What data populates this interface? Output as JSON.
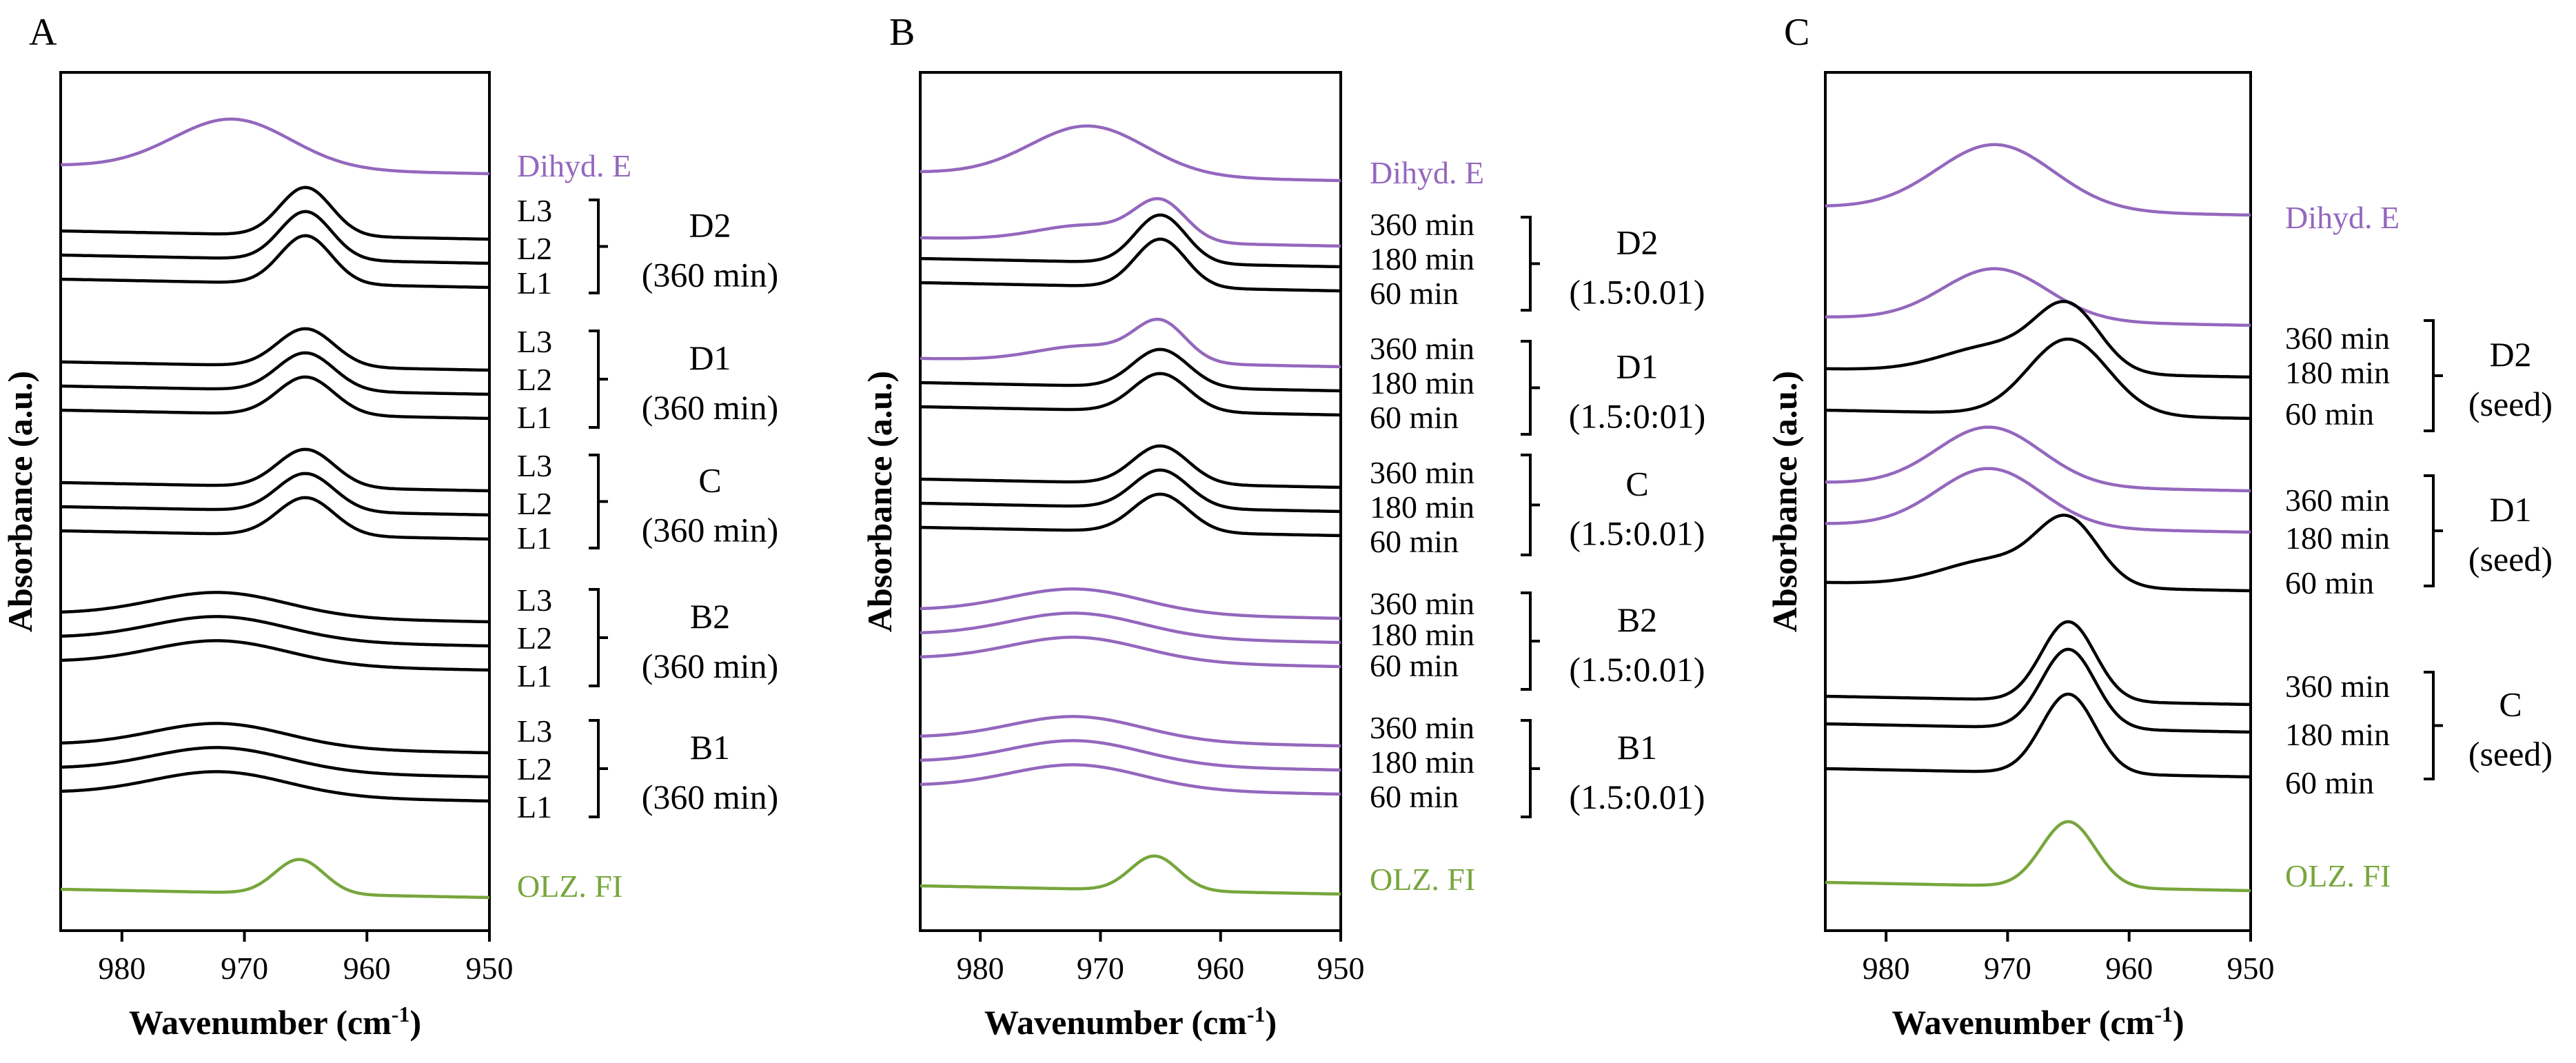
{
  "colors": {
    "black": "#000000",
    "purple": "#9467bd",
    "green": "#77a63c"
  },
  "chart_data": [
    {
      "type": "line",
      "panel_label": "A",
      "xlabel_main": "Wavenumber (cm",
      "xlabel_sup": "-1",
      "xlabel_end": ")",
      "ylabel": "Absorbance (a.u.)",
      "xlim": [
        985,
        950
      ],
      "xticks": [
        "980",
        "970",
        "960",
        "950"
      ],
      "xtick_values": [
        980,
        970,
        960,
        950
      ],
      "series": [
        {
          "name": "Dihyd. E",
          "color": "purple",
          "baseline": 2.4,
          "shape": "broad",
          "peak": 971,
          "amp": 0.72,
          "width": 4.8
        },
        {
          "name": "D2 L3",
          "color": "black",
          "baseline": 3.35,
          "shape": "narrow",
          "peak": 965,
          "amp": 0.7,
          "width": 2.1
        },
        {
          "name": "D2 L2",
          "color": "black",
          "baseline": 3.7,
          "shape": "narrow",
          "peak": 965,
          "amp": 0.7,
          "width": 2.1
        },
        {
          "name": "D2 L1",
          "color": "black",
          "baseline": 4.05,
          "shape": "narrow",
          "peak": 965,
          "amp": 0.7,
          "width": 2.1
        },
        {
          "name": "D1 L3",
          "color": "black",
          "baseline": 5.25,
          "shape": "narrow",
          "peak": 965,
          "amp": 0.55,
          "width": 2.3
        },
        {
          "name": "D1 L2",
          "color": "black",
          "baseline": 5.6,
          "shape": "narrow",
          "peak": 965,
          "amp": 0.55,
          "width": 2.3
        },
        {
          "name": "D1 L1",
          "color": "black",
          "baseline": 5.95,
          "shape": "narrow",
          "peak": 965,
          "amp": 0.55,
          "width": 2.3
        },
        {
          "name": "C L3",
          "color": "black",
          "baseline": 7.0,
          "shape": "narrow",
          "peak": 965,
          "amp": 0.55,
          "width": 2.3
        },
        {
          "name": "C L2",
          "color": "black",
          "baseline": 7.35,
          "shape": "narrow",
          "peak": 965,
          "amp": 0.55,
          "width": 2.3
        },
        {
          "name": "C L1",
          "color": "black",
          "baseline": 7.7,
          "shape": "narrow",
          "peak": 965,
          "amp": 0.55,
          "width": 2.3
        },
        {
          "name": "B2 L3",
          "color": "black",
          "baseline": 8.9,
          "shape": "broad",
          "peak": 972,
          "amp": 0.35,
          "width": 5.5
        },
        {
          "name": "B2 L2",
          "color": "black",
          "baseline": 9.25,
          "shape": "broad",
          "peak": 972,
          "amp": 0.35,
          "width": 5.5
        },
        {
          "name": "B2 L1",
          "color": "black",
          "baseline": 9.6,
          "shape": "broad",
          "peak": 972,
          "amp": 0.35,
          "width": 5.5
        },
        {
          "name": "B1 L3",
          "color": "black",
          "baseline": 10.8,
          "shape": "broad",
          "peak": 972,
          "amp": 0.35,
          "width": 5.5
        },
        {
          "name": "B1 L2",
          "color": "black",
          "baseline": 11.15,
          "shape": "broad",
          "peak": 972,
          "amp": 0.35,
          "width": 5.5
        },
        {
          "name": "B1 L1",
          "color": "black",
          "baseline": 11.5,
          "shape": "broad",
          "peak": 972,
          "amp": 0.35,
          "width": 5.5
        },
        {
          "name": "OLZ. FI",
          "color": "green",
          "baseline": 12.9,
          "shape": "narrow",
          "peak": 965.5,
          "amp": 0.5,
          "width": 2.0
        }
      ],
      "labels": [
        {
          "text": "Dihyd. E",
          "color": "purple",
          "level": 2.4
        },
        {
          "text": "L3",
          "color": "black",
          "level": 3.05
        },
        {
          "text": "L2",
          "color": "black",
          "level": 3.6
        },
        {
          "text": "L1",
          "color": "black",
          "level": 4.1
        },
        {
          "text": "L3",
          "color": "black",
          "level": 4.95
        },
        {
          "text": "L2",
          "color": "black",
          "level": 5.5
        },
        {
          "text": "L1",
          "color": "black",
          "level": 6.05
        },
        {
          "text": "L3",
          "color": "black",
          "level": 6.75
        },
        {
          "text": "L2",
          "color": "black",
          "level": 7.3
        },
        {
          "text": "L1",
          "color": "black",
          "level": 7.8
        },
        {
          "text": "L3",
          "color": "black",
          "level": 8.7
        },
        {
          "text": "L2",
          "color": "black",
          "level": 9.25
        },
        {
          "text": "L1",
          "color": "black",
          "level": 9.8
        },
        {
          "text": "L3",
          "color": "black",
          "level": 10.6
        },
        {
          "text": "L2",
          "color": "black",
          "level": 11.15
        },
        {
          "text": "L1",
          "color": "black",
          "level": 11.7
        },
        {
          "text": "OLZ. FI",
          "color": "green",
          "level": 12.85
        }
      ],
      "groups": [
        {
          "name": "D2",
          "sub": "(360 min)",
          "top": 2.9,
          "bottom": 4.25
        },
        {
          "name": "D1",
          "sub": "(360 min)",
          "top": 4.8,
          "bottom": 6.2
        },
        {
          "name": "C",
          "sub": "(360 min)",
          "top": 6.6,
          "bottom": 7.95
        },
        {
          "name": "B2",
          "sub": "(360 min)",
          "top": 8.55,
          "bottom": 9.95
        },
        {
          "name": "B1",
          "sub": "(360 min)",
          "top": 10.45,
          "bottom": 11.85
        }
      ]
    },
    {
      "type": "line",
      "panel_label": "B",
      "xlabel_main": "Wavenumber (cm",
      "xlabel_sup": "-1",
      "xlabel_end": ")",
      "ylabel": "Absorbance (a.u.)",
      "xlim": [
        985,
        950
      ],
      "xticks": [
        "980",
        "970",
        "960",
        "950"
      ],
      "xtick_values": [
        980,
        970,
        960,
        950
      ],
      "series": [
        {
          "name": "Dihyd. E",
          "color": "purple",
          "baseline": 2.5,
          "shape": "broad",
          "peak": 971,
          "amp": 0.72,
          "width": 4.8
        },
        {
          "name": "D2 360 min",
          "color": "purple",
          "baseline": 3.45,
          "shape": "mixed",
          "peak": 965,
          "amp": 0.55,
          "width": 2.1
        },
        {
          "name": "D2 180 min",
          "color": "black",
          "baseline": 3.75,
          "shape": "narrow",
          "peak": 965,
          "amp": 0.7,
          "width": 2.1
        },
        {
          "name": "D2 60 min",
          "color": "black",
          "baseline": 4.1,
          "shape": "narrow",
          "peak": 965,
          "amp": 0.7,
          "width": 2.1
        },
        {
          "name": "D1 360 min",
          "color": "purple",
          "baseline": 5.2,
          "shape": "mixed",
          "peak": 965,
          "amp": 0.55,
          "width": 2.1
        },
        {
          "name": "D1 180 min",
          "color": "black",
          "baseline": 5.55,
          "shape": "narrow",
          "peak": 965,
          "amp": 0.55,
          "width": 2.3
        },
        {
          "name": "D1 60 min",
          "color": "black",
          "baseline": 5.9,
          "shape": "narrow",
          "peak": 965,
          "amp": 0.55,
          "width": 2.3
        },
        {
          "name": "C 360 min",
          "color": "black",
          "baseline": 6.95,
          "shape": "narrow",
          "peak": 965,
          "amp": 0.55,
          "width": 2.3
        },
        {
          "name": "C 180 min",
          "color": "black",
          "baseline": 7.3,
          "shape": "narrow",
          "peak": 965,
          "amp": 0.55,
          "width": 2.3
        },
        {
          "name": "C 60 min",
          "color": "black",
          "baseline": 7.65,
          "shape": "narrow",
          "peak": 965,
          "amp": 0.55,
          "width": 2.3
        },
        {
          "name": "B2 360 min",
          "color": "purple",
          "baseline": 8.85,
          "shape": "broad",
          "peak": 972,
          "amp": 0.35,
          "width": 5.5
        },
        {
          "name": "B2 180 min",
          "color": "purple",
          "baseline": 9.2,
          "shape": "broad",
          "peak": 972,
          "amp": 0.35,
          "width": 5.5
        },
        {
          "name": "B2 60 min",
          "color": "purple",
          "baseline": 9.55,
          "shape": "broad",
          "peak": 972,
          "amp": 0.35,
          "width": 5.5
        },
        {
          "name": "B1 360 min",
          "color": "purple",
          "baseline": 10.7,
          "shape": "broad",
          "peak": 972,
          "amp": 0.35,
          "width": 5.5
        },
        {
          "name": "B1 180 min",
          "color": "purple",
          "baseline": 11.05,
          "shape": "broad",
          "peak": 972,
          "amp": 0.35,
          "width": 5.5
        },
        {
          "name": "B1 60 min",
          "color": "purple",
          "baseline": 11.4,
          "shape": "broad",
          "peak": 972,
          "amp": 0.35,
          "width": 5.5
        },
        {
          "name": "OLZ. FI",
          "color": "green",
          "baseline": 12.85,
          "shape": "narrow",
          "peak": 965.5,
          "amp": 0.5,
          "width": 2.0
        }
      ],
      "labels": [
        {
          "text": "Dihyd. E",
          "color": "purple",
          "level": 2.5
        },
        {
          "text": "360 min",
          "color": "black",
          "level": 3.25
        },
        {
          "text": "180 min",
          "color": "black",
          "level": 3.75
        },
        {
          "text": "60 min",
          "color": "black",
          "level": 4.25
        },
        {
          "text": "360 min",
          "color": "black",
          "level": 5.05
        },
        {
          "text": "180 min",
          "color": "black",
          "level": 5.55
        },
        {
          "text": "60 min",
          "color": "black",
          "level": 6.05
        },
        {
          "text": "360 min",
          "color": "black",
          "level": 6.85
        },
        {
          "text": "180 min",
          "color": "black",
          "level": 7.35
        },
        {
          "text": "60 min",
          "color": "black",
          "level": 7.85
        },
        {
          "text": "360 min",
          "color": "black",
          "level": 8.75
        },
        {
          "text": "180 min",
          "color": "black",
          "level": 9.2
        },
        {
          "text": "60 min",
          "color": "black",
          "level": 9.65
        },
        {
          "text": "360 min",
          "color": "black",
          "level": 10.55
        },
        {
          "text": "180 min",
          "color": "black",
          "level": 11.05
        },
        {
          "text": "60 min",
          "color": "black",
          "level": 11.55
        },
        {
          "text": "OLZ. FI",
          "color": "green",
          "level": 12.75
        }
      ],
      "groups": [
        {
          "name": "D2",
          "sub": "(1.5:0.01)",
          "top": 3.15,
          "bottom": 4.5
        },
        {
          "name": "D1",
          "sub": "(1.5:0:01)",
          "top": 4.95,
          "bottom": 6.3
        },
        {
          "name": "C",
          "sub": "(1.5:0.01)",
          "top": 6.6,
          "bottom": 8.05
        },
        {
          "name": "B2",
          "sub": "(1.5:0.01)",
          "top": 8.6,
          "bottom": 10.0
        },
        {
          "name": "B1",
          "sub": "(1.5:0.01)",
          "top": 10.45,
          "bottom": 11.85
        }
      ]
    },
    {
      "type": "line",
      "panel_label": "C",
      "xlabel_main": "Wavenumber (cm",
      "xlabel_sup": "-1",
      "xlabel_end": ")",
      "ylabel": "Absorbance (a.u.)",
      "xlim": [
        985,
        950
      ],
      "xticks": [
        "980",
        "970",
        "960",
        "950"
      ],
      "xtick_values": [
        980,
        970,
        960,
        950
      ],
      "series": [
        {
          "name": "Dihyd. E",
          "color": "purple",
          "baseline": 3.0,
          "shape": "broad",
          "peak": 971,
          "amp": 0.95,
          "width": 4.8
        },
        {
          "name": "D2 360 min",
          "color": "purple",
          "baseline": 4.6,
          "shape": "broad",
          "peak": 971,
          "amp": 0.75,
          "width": 4.3
        },
        {
          "name": "D2 180 min",
          "color": "black",
          "baseline": 5.35,
          "shape": "mixed",
          "peak": 965,
          "amp": 0.9,
          "width": 2.6
        },
        {
          "name": "D2 60 min",
          "color": "black",
          "baseline": 5.95,
          "shape": "narrow",
          "peak": 965,
          "amp": 1.1,
          "width": 3.3
        },
        {
          "name": "D1 360 min",
          "color": "purple",
          "baseline": 7.0,
          "shape": "broad",
          "peak": 971.5,
          "amp": 0.85,
          "width": 4.3
        },
        {
          "name": "D1 180 min",
          "color": "purple",
          "baseline": 7.6,
          "shape": "broad",
          "peak": 971.5,
          "amp": 0.85,
          "width": 4.3
        },
        {
          "name": "D1 60 min",
          "color": "black",
          "baseline": 8.45,
          "shape": "mixed",
          "peak": 965,
          "amp": 0.9,
          "width": 2.5
        },
        {
          "name": "C 360 min",
          "color": "black",
          "baseline": 10.1,
          "shape": "narrow",
          "peak": 965,
          "amp": 1.15,
          "width": 2.2
        },
        {
          "name": "C 180 min",
          "color": "black",
          "baseline": 10.5,
          "shape": "narrow",
          "peak": 965,
          "amp": 1.15,
          "width": 2.2
        },
        {
          "name": "C 60 min",
          "color": "black",
          "baseline": 11.15,
          "shape": "narrow",
          "peak": 965,
          "amp": 1.15,
          "width": 2.2
        },
        {
          "name": "OLZ. FI",
          "color": "green",
          "baseline": 12.8,
          "shape": "narrow",
          "peak": 965,
          "amp": 0.95,
          "width": 2.2
        }
      ],
      "labels": [
        {
          "text": "Dihyd. E",
          "color": "purple",
          "level": 3.15
        },
        {
          "text": "360 min",
          "color": "black",
          "level": 4.9
        },
        {
          "text": "180 min",
          "color": "black",
          "level": 5.4
        },
        {
          "text": "60 min",
          "color": "black",
          "level": 6.0
        },
        {
          "text": "360 min",
          "color": "black",
          "level": 7.25
        },
        {
          "text": "180 min",
          "color": "black",
          "level": 7.8
        },
        {
          "text": "60 min",
          "color": "black",
          "level": 8.45
        },
        {
          "text": "360 min",
          "color": "black",
          "level": 9.95
        },
        {
          "text": "180 min",
          "color": "black",
          "level": 10.65
        },
        {
          "text": "60 min",
          "color": "black",
          "level": 11.35
        },
        {
          "text": "OLZ. FI",
          "color": "green",
          "level": 12.7
        }
      ],
      "groups": [
        {
          "name": "D2",
          "sub": "(seed)",
          "top": 4.65,
          "bottom": 6.25
        },
        {
          "name": "D1",
          "sub": "(seed)",
          "top": 6.9,
          "bottom": 8.5
        },
        {
          "name": "C",
          "sub": "(seed)",
          "top": 9.75,
          "bottom": 11.3
        }
      ]
    }
  ]
}
